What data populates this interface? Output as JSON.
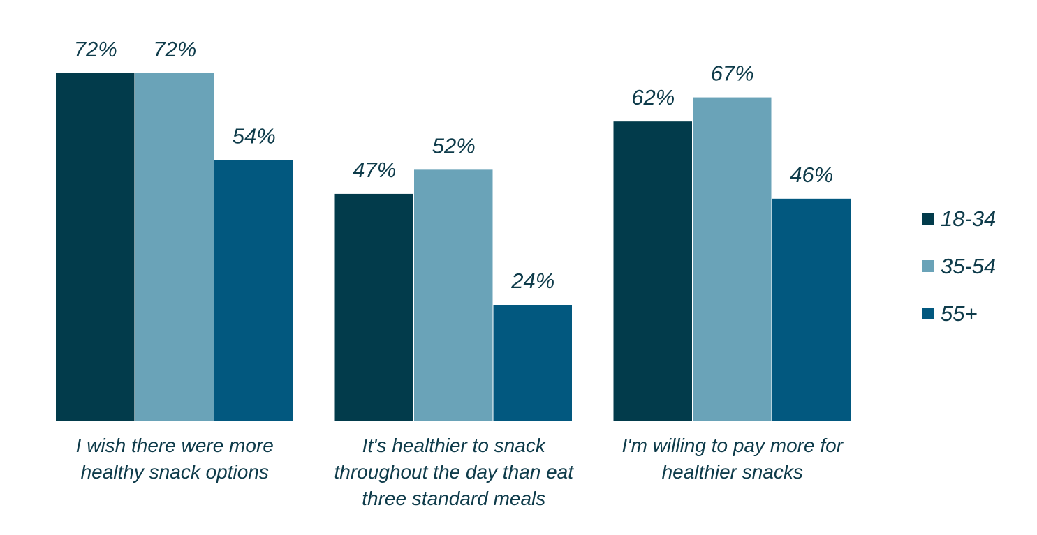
{
  "chart_data": {
    "type": "bar",
    "categories": [
      [
        "I wish there were more",
        "healthy snack options"
      ],
      [
        "It's healthier to snack",
        "throughout the day than eat",
        "three standard meals"
      ],
      [
        "I'm willing to pay more for",
        "healthier snacks"
      ]
    ],
    "series": [
      {
        "name": "18-34",
        "values": [
          72,
          47,
          62
        ],
        "labels": [
          "72%",
          "47%",
          "62%"
        ],
        "color": "#023b4b"
      },
      {
        "name": "35-54",
        "values": [
          72,
          52,
          67
        ],
        "labels": [
          "72%",
          "52%",
          "67%"
        ],
        "color": "#6aa3b8"
      },
      {
        "name": "55+",
        "values": [
          54,
          24,
          46
        ],
        "labels": [
          "54%",
          "24%",
          "46%"
        ],
        "color": "#02587f"
      }
    ],
    "ylim": [
      0,
      72
    ],
    "grid": false,
    "legend_position": "right",
    "text_color": "#0e3b4a"
  }
}
